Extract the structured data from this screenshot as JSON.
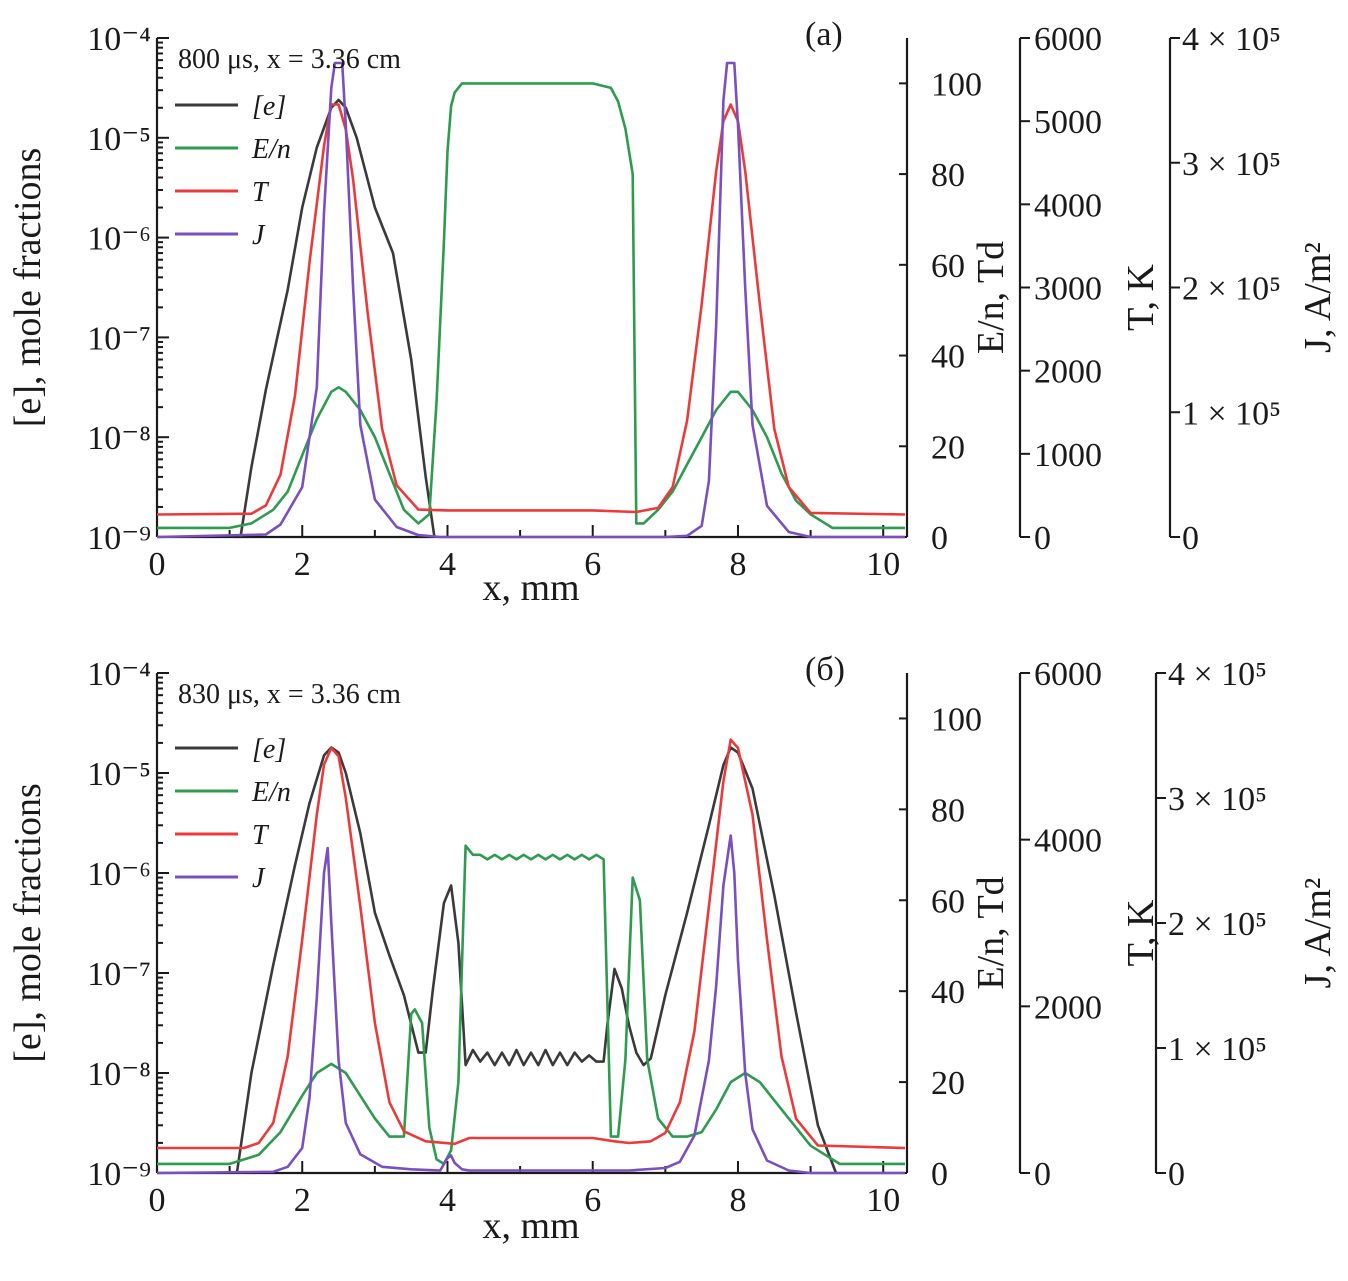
{
  "chart_data": [
    {
      "type": "line",
      "panel_label": "(a)",
      "annotation": {
        "time": "800 μs",
        "position": "x = 3.36 cm"
      },
      "xlabel": "x, mm",
      "xlim": [
        0,
        10.3
      ],
      "x_ticks": [
        "0",
        "2",
        "4",
        "6",
        "8",
        "10"
      ],
      "axes": {
        "e": {
          "label": "[e], mole fractions",
          "scale": "log",
          "ylim": [
            1e-09,
            0.0001
          ],
          "tick_labels": [
            "10⁻⁹",
            "10⁻⁸",
            "10⁻⁷",
            "10⁻⁶",
            "10⁻⁵",
            "10⁻⁴"
          ]
        },
        "En": {
          "label": "E/n, Td",
          "ylim": [
            0,
            110
          ],
          "ticks": [
            0,
            20,
            40,
            60,
            80,
            100
          ],
          "tick_labels": [
            "0",
            "20",
            "40",
            "60",
            "80",
            "100"
          ]
        },
        "T": {
          "label": "T, K",
          "ylim": [
            0,
            6000
          ],
          "ticks": [
            0,
            1000,
            2000,
            3000,
            4000,
            5000,
            6000
          ],
          "tick_labels": [
            "0",
            "1000",
            "2000",
            "3000",
            "4000",
            "5000",
            "6000"
          ]
        },
        "J": {
          "label": "J, A/m²",
          "ylim": [
            0,
            400000
          ],
          "ticks": [
            0,
            100000,
            200000,
            300000,
            400000
          ],
          "tick_labels": [
            "0",
            "1 × 10⁵",
            "2 × 10⁵",
            "3 × 10⁵",
            "4 × 10⁵"
          ]
        }
      },
      "legend": [
        "[e]",
        "E/n",
        "T",
        "J"
      ],
      "colors": {
        "e": "#3a3a3a",
        "En": "#2e9b4f",
        "T": "#ec3a3a",
        "J": "#7a4fc0"
      },
      "series": {
        "e": {
          "x": [
            1.15,
            1.3,
            1.5,
            1.8,
            2.0,
            2.2,
            2.4,
            2.5,
            2.6,
            2.75,
            3.0,
            3.25,
            3.5,
            3.7,
            3.82
          ],
          "y": [
            1e-09,
            5e-09,
            3e-08,
            3e-07,
            2e-06,
            8e-06,
            2e-05,
            2.4e-05,
            2e-05,
            1e-05,
            2e-06,
            7e-07,
            6e-08,
            4e-09,
            1e-09
          ]
        },
        "En": {
          "x": [
            0,
            1.0,
            1.3,
            1.6,
            1.8,
            2.0,
            2.2,
            2.4,
            2.5,
            2.6,
            2.8,
            3.0,
            3.2,
            3.4,
            3.6,
            3.75,
            3.85,
            3.95,
            4.0,
            4.05,
            4.1,
            4.2,
            4.5,
            5.0,
            5.5,
            6.0,
            6.25,
            6.35,
            6.45,
            6.55,
            6.6,
            6.7,
            6.9,
            7.1,
            7.3,
            7.5,
            7.7,
            7.9,
            8.0,
            8.2,
            8.4,
            8.6,
            8.8,
            9.0,
            9.3,
            10.3
          ],
          "y": [
            2,
            2,
            3,
            6,
            10,
            18,
            26,
            32,
            33,
            32,
            28,
            22,
            14,
            6,
            3,
            5,
            30,
            65,
            85,
            95,
            98,
            100,
            100,
            100,
            100,
            100,
            99,
            96,
            90,
            80,
            3,
            3,
            6,
            10,
            16,
            22,
            28,
            32,
            32,
            28,
            22,
            14,
            8,
            5,
            2,
            2
          ]
        },
        "T": {
          "x": [
            0,
            1.3,
            1.5,
            1.7,
            1.9,
            2.1,
            2.3,
            2.4,
            2.5,
            2.6,
            2.7,
            2.9,
            3.1,
            3.3,
            3.6,
            4.0,
            6.0,
            6.6,
            6.9,
            7.1,
            7.3,
            7.5,
            7.7,
            7.8,
            7.9,
            8.0,
            8.1,
            8.3,
            8.5,
            8.7,
            9.0,
            10.3
          ],
          "y": [
            270,
            280,
            380,
            750,
            1700,
            3300,
            4700,
            5200,
            5200,
            4900,
            4300,
            2700,
            1300,
            620,
            330,
            320,
            320,
            300,
            350,
            600,
            1400,
            2800,
            4400,
            5000,
            5200,
            5000,
            4400,
            2800,
            1300,
            600,
            290,
            270
          ]
        },
        "J": {
          "x": [
            0,
            1.5,
            1.7,
            2.0,
            2.2,
            2.3,
            2.4,
            2.45,
            2.55,
            2.6,
            2.7,
            2.8,
            3.0,
            3.3,
            3.6,
            3.9,
            7.0,
            7.3,
            7.5,
            7.6,
            7.7,
            7.8,
            7.85,
            7.95,
            8.0,
            8.1,
            8.2,
            8.4,
            8.7,
            9.0,
            10.3
          ],
          "y": [
            0,
            2000,
            10000,
            40000,
            120000,
            260000,
            360000,
            380000,
            380000,
            330000,
            200000,
            90000,
            30000,
            8000,
            1500,
            0,
            0,
            1000,
            9000,
            45000,
            170000,
            350000,
            380000,
            380000,
            330000,
            200000,
            90000,
            25000,
            4000,
            0,
            0
          ]
        }
      }
    },
    {
      "type": "line",
      "panel_label": "(б)",
      "annotation": {
        "time": "830 μs",
        "position": "x = 3.36 cm"
      },
      "xlabel": "x, mm",
      "xlim": [
        0,
        10.3
      ],
      "x_ticks": [
        "0",
        "2",
        "4",
        "6",
        "8",
        "10"
      ],
      "axes": {
        "e": {
          "label": "[e], mole fractions",
          "scale": "log",
          "ylim": [
            1e-09,
            0.0001
          ],
          "tick_labels": [
            "10⁻⁹",
            "10⁻⁸",
            "10⁻⁷",
            "10⁻⁶",
            "10⁻⁵",
            "10⁻⁴"
          ]
        },
        "En": {
          "label": "E/n, Td",
          "ylim": [
            0,
            110
          ],
          "ticks": [
            0,
            20,
            40,
            60,
            80,
            100
          ],
          "tick_labels": [
            "0",
            "20",
            "40",
            "60",
            "80",
            "100"
          ]
        },
        "T": {
          "label": "T, K",
          "ylim": [
            0,
            6000
          ],
          "ticks": [
            0,
            2000,
            4000,
            6000
          ],
          "tick_labels": [
            "0",
            "2000",
            "4000",
            "6000"
          ]
        },
        "J": {
          "label": "J, A/m²",
          "ylim": [
            0,
            400000
          ],
          "ticks": [
            0,
            100000,
            200000,
            300000,
            400000
          ],
          "tick_labels": [
            "0",
            "1 × 10⁵",
            "2 × 10⁵",
            "3 × 10⁵",
            "4 × 10⁵"
          ]
        }
      },
      "legend": [
        "[e]",
        "E/n",
        "T",
        "J"
      ],
      "colors": {
        "e": "#3a3a3a",
        "En": "#2e9b4f",
        "T": "#ec3a3a",
        "J": "#7a4fc0"
      },
      "series": {
        "e": {
          "x": [
            1.1,
            1.3,
            1.6,
            1.9,
            2.1,
            2.3,
            2.4,
            2.5,
            2.6,
            2.8,
            3.0,
            3.2,
            3.4,
            3.6,
            3.7,
            3.8,
            3.95,
            4.05,
            4.15,
            4.25,
            4.35,
            4.45,
            4.55,
            4.65,
            4.75,
            4.85,
            4.95,
            5.05,
            5.15,
            5.25,
            5.35,
            5.45,
            5.55,
            5.65,
            5.75,
            5.85,
            5.95,
            6.05,
            6.15,
            6.2,
            6.3,
            6.4,
            6.5,
            6.6,
            6.7,
            6.8,
            7.0,
            7.3,
            7.6,
            7.8,
            7.9,
            8.0,
            8.2,
            8.5,
            8.8,
            9.1,
            9.35
          ],
          "y": [
            1e-09,
            1e-08,
            1.2e-07,
            1.2e-06,
            5e-06,
            1.5e-05,
            1.8e-05,
            1.6e-05,
            1e-05,
            2.5e-06,
            4e-07,
            1.5e-07,
            6e-08,
            1.6e-08,
            1.6e-08,
            7e-08,
            5e-07,
            7.5e-07,
            2e-07,
            1.2e-08,
            1.7e-08,
            1.3e-08,
            1.6e-08,
            1.2e-08,
            1.6e-08,
            1.2e-08,
            1.7e-08,
            1.2e-08,
            1.6e-08,
            1.2e-08,
            1.7e-08,
            1.2e-08,
            1.6e-08,
            1.2e-08,
            1.6e-08,
            1.3e-08,
            1.5e-08,
            1.3e-08,
            1.3e-08,
            3e-08,
            1.1e-07,
            7e-08,
            3e-08,
            1.6e-08,
            1.2e-08,
            1.4e-08,
            6e-08,
            4e-07,
            3e-06,
            1.2e-05,
            1.8e-05,
            1.6e-05,
            7e-06,
            6e-07,
            4e-08,
            3e-09,
            1e-09
          ]
        },
        "En": {
          "x": [
            0,
            1.0,
            1.4,
            1.7,
            2.0,
            2.2,
            2.4,
            2.6,
            2.8,
            3.0,
            3.2,
            3.4,
            3.5,
            3.55,
            3.65,
            3.75,
            3.85,
            3.95,
            4.05,
            4.15,
            4.25,
            4.35,
            4.45,
            4.55,
            4.65,
            4.75,
            4.85,
            4.95,
            5.05,
            5.15,
            5.25,
            5.35,
            5.45,
            5.55,
            5.65,
            5.75,
            5.85,
            5.95,
            6.05,
            6.15,
            6.25,
            6.35,
            6.45,
            6.55,
            6.65,
            6.75,
            6.9,
            7.1,
            7.3,
            7.5,
            7.7,
            7.9,
            8.1,
            8.3,
            8.6,
            9.0,
            9.4,
            10.3
          ],
          "y": [
            2,
            2,
            4,
            9,
            17,
            22,
            24,
            22,
            17,
            12,
            8,
            8,
            35,
            36,
            33,
            10,
            3,
            2,
            5,
            20,
            72,
            70,
            70,
            69,
            70,
            69,
            70,
            69,
            70,
            69,
            70,
            69,
            70,
            69,
            70,
            69,
            70,
            69,
            70,
            69,
            8,
            8,
            25,
            65,
            60,
            25,
            12,
            8,
            8,
            9,
            14,
            20,
            22,
            20,
            14,
            6,
            2,
            2
          ]
        },
        "T": {
          "x": [
            0,
            1.2,
            1.4,
            1.6,
            1.8,
            2.0,
            2.2,
            2.3,
            2.4,
            2.5,
            2.6,
            2.8,
            3.0,
            3.2,
            3.4,
            3.7,
            4.1,
            4.3,
            6.0,
            6.3,
            6.5,
            6.8,
            7.0,
            7.2,
            7.4,
            7.6,
            7.8,
            7.9,
            8.0,
            8.2,
            8.4,
            8.6,
            8.8,
            9.1,
            10.3
          ],
          "y": [
            300,
            300,
            360,
            600,
            1400,
            2800,
            4300,
            4900,
            5100,
            5000,
            4500,
            3200,
            1800,
            850,
            500,
            380,
            350,
            420,
            420,
            380,
            360,
            380,
            480,
            850,
            1700,
            3200,
            4700,
            5200,
            5100,
            4300,
            2800,
            1400,
            650,
            330,
            300
          ]
        },
        "J": {
          "x": [
            0,
            1.6,
            1.8,
            2.0,
            2.1,
            2.2,
            2.3,
            2.35,
            2.4,
            2.5,
            2.6,
            2.8,
            3.1,
            3.5,
            3.9,
            4.0,
            4.05,
            4.1,
            4.2,
            4.3,
            6.0,
            6.5,
            7.0,
            7.2,
            7.4,
            7.6,
            7.7,
            7.8,
            7.9,
            7.95,
            8.0,
            8.1,
            8.2,
            8.4,
            8.7,
            9.0,
            10.3
          ],
          "y": [
            0,
            1000,
            5000,
            20000,
            60000,
            140000,
            240000,
            260000,
            200000,
            90000,
            40000,
            15000,
            5000,
            3000,
            2000,
            12000,
            14000,
            8000,
            3000,
            2000,
            2000,
            2000,
            4000,
            9000,
            30000,
            90000,
            150000,
            230000,
            270000,
            240000,
            170000,
            80000,
            35000,
            10000,
            2000,
            0,
            0
          ]
        }
      }
    }
  ]
}
